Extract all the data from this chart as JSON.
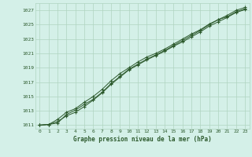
{
  "title": "Graphe pression niveau de la mer (hPa)",
  "background_color": "#d4f0e8",
  "grid_color": "#b0d4c0",
  "line_color": "#2d5a2d",
  "marker_color": "#2d5a2d",
  "xlim": [
    -0.5,
    23.5
  ],
  "ylim": [
    1010.5,
    1028.0
  ],
  "xticks": [
    0,
    1,
    2,
    3,
    4,
    5,
    6,
    7,
    8,
    9,
    10,
    11,
    12,
    13,
    14,
    15,
    16,
    17,
    18,
    19,
    20,
    21,
    22,
    23
  ],
  "yticks": [
    1011,
    1013,
    1015,
    1017,
    1019,
    1021,
    1023,
    1025,
    1027
  ],
  "series": [
    [
      1011.0,
      1011.1,
      1011.3,
      1012.5,
      1013.1,
      1013.9,
      1014.6,
      1015.6,
      1016.8,
      1017.8,
      1018.8,
      1019.5,
      1020.2,
      1020.8,
      1021.4,
      1022.1,
      1022.8,
      1023.5,
      1024.2,
      1025.0,
      1025.7,
      1026.3,
      1027.0,
      1027.4
    ],
    [
      1011.0,
      1011.1,
      1011.8,
      1012.8,
      1013.3,
      1014.2,
      1015.0,
      1016.0,
      1017.2,
      1018.2,
      1019.0,
      1019.8,
      1020.5,
      1021.0,
      1021.6,
      1022.3,
      1023.0,
      1023.7,
      1024.3,
      1025.1,
      1025.7,
      1026.1,
      1026.8,
      1027.2
    ],
    [
      1011.0,
      1011.1,
      1011.5,
      1012.3,
      1012.8,
      1013.6,
      1014.5,
      1015.5,
      1016.7,
      1017.7,
      1018.7,
      1019.4,
      1020.1,
      1020.7,
      1021.3,
      1022.0,
      1022.6,
      1023.3,
      1024.0,
      1024.8,
      1025.4,
      1026.0,
      1026.7,
      1027.1
    ]
  ]
}
